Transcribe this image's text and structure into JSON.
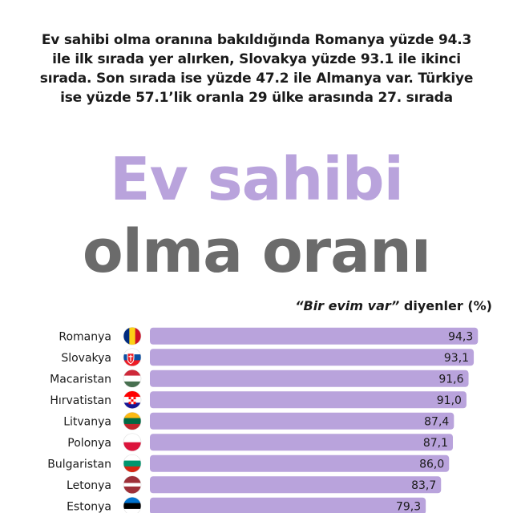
{
  "intro_text": "Ev sahibi olma oranına bakıldığında Romanya yüzde 94.3 ile ilk sırada yer alırken, Slovakya yüzde 93.1 ile ikinci sırada. Son sırada ise yüzde 47.2 ile Almanya var. Türkiye ise yüzde 57.1’lik oranla 29 ülke arasında 27. sırada",
  "title_line1": "Ev sahibi",
  "title_line2": "olma oranı",
  "subtitle_quote": "“Bir evim var”",
  "subtitle_rest": " diyenler (%)",
  "colors": {
    "title1": "#b9a3dc",
    "title2": "#6b6b6b",
    "bar": "#b9a3dc",
    "text": "#1a1a1a"
  },
  "chart_data": {
    "type": "bar",
    "orientation": "horizontal",
    "title": "",
    "xlabel": "",
    "ylabel": "“Bir evim var” diyenler (%)",
    "xlim": [
      0,
      100
    ],
    "categories": [
      "Romanya",
      "Slovakya",
      "Macaristan",
      "Hırvatistan",
      "Litvanya",
      "Polonya",
      "Bulgaristan",
      "Letonya",
      "Estonya"
    ],
    "values": [
      94.3,
      93.1,
      91.6,
      91.0,
      87.4,
      87.1,
      86.0,
      83.7,
      79.3
    ],
    "value_labels": [
      "94,3",
      "93,1",
      "91,6",
      "91,0",
      "87,4",
      "87,1",
      "86,0",
      "83,7",
      "79,3"
    ],
    "flag_icons": [
      "flag-romania-icon",
      "flag-slovakia-icon",
      "flag-hungary-icon",
      "flag-croatia-icon",
      "flag-lithuania-icon",
      "flag-poland-icon",
      "flag-bulgaria-icon",
      "flag-latvia-icon",
      "flag-estonia-icon"
    ],
    "grid": false,
    "legend": "none"
  }
}
